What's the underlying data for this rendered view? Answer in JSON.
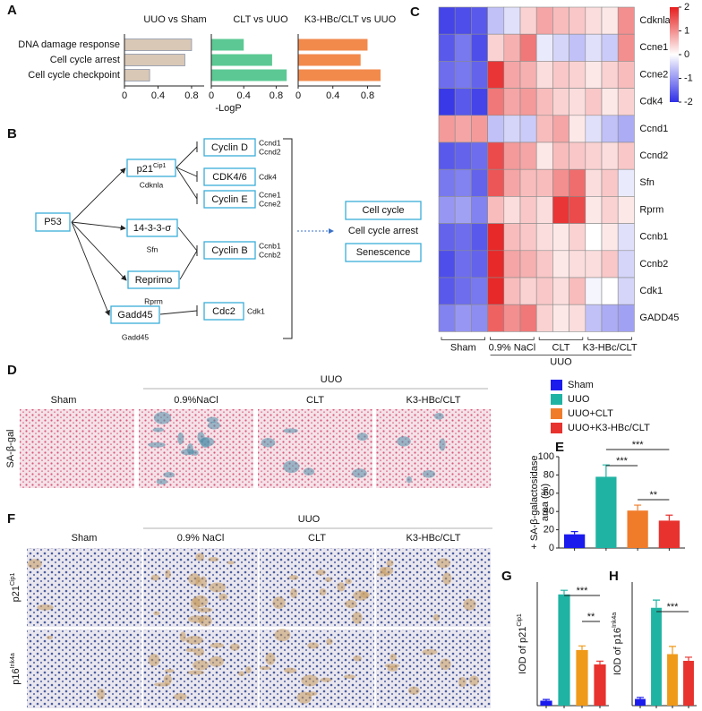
{
  "panel_letters": [
    "A",
    "B",
    "C",
    "D",
    "E",
    "F",
    "G",
    "H"
  ],
  "chart_data": [
    {
      "type": "hbar",
      "title": "UUO vs Sham",
      "categories": [
        "DNA damage response",
        "Cell cycle arrest",
        "Cell cycle checkpoint"
      ],
      "values": [
        0.8,
        0.72,
        0.3
      ],
      "color": "#d9c8b6",
      "xlim": [
        0,
        0.95
      ],
      "xticks": [
        0,
        0.4,
        0.8
      ]
    },
    {
      "type": "hbar",
      "title": "CLT vs UUO",
      "values": [
        0.4,
        0.75,
        0.93
      ],
      "color": "#5cc994",
      "xlim": [
        0,
        0.95
      ],
      "xticks": [
        0,
        0.4,
        0.8
      ],
      "xlabel": "-LogP"
    },
    {
      "type": "hbar",
      "title": "K3-HBc/CLT vs UUO",
      "values": [
        0.8,
        0.72,
        0.95
      ],
      "color": "#f28a4c",
      "xlim": [
        0,
        0.95
      ],
      "xticks": [
        0,
        0.4,
        0.8
      ]
    },
    {
      "type": "heatmap",
      "rows": [
        "Cdknla",
        "Ccne1",
        "Ccne2",
        "Cdk4",
        "Ccnd1",
        "Ccnd2",
        "Sfn",
        "Rprm",
        "Ccnb1",
        "Ccnb2",
        "Cdk1",
        "GADD45"
      ],
      "groups": [
        "Sham",
        "0.9% NaCl",
        "CLT",
        "K3-HBc/CLT"
      ],
      "supergroup": "UUO",
      "values": [
        [
          -1.8,
          -1.7,
          -1.6,
          -0.6,
          -0.3,
          0.4,
          0.8,
          0.6,
          0.5,
          0.3,
          0.2,
          1.0
        ],
        [
          -1.6,
          -1.3,
          -1.7,
          0.4,
          0.7,
          1.2,
          -0.2,
          -0.4,
          -0.6,
          -0.3,
          -0.5,
          1.0
        ],
        [
          -1.4,
          -1.3,
          -1.5,
          1.8,
          0.8,
          0.7,
          0.3,
          0.5,
          0.4,
          0.2,
          0.4,
          0.6
        ],
        [
          -1.9,
          -1.6,
          -1.8,
          1.2,
          0.8,
          0.9,
          0.6,
          0.4,
          0.3,
          0.5,
          0.2,
          0.4
        ],
        [
          0.9,
          0.8,
          0.9,
          -0.6,
          -0.4,
          -0.5,
          0.6,
          0.8,
          0.2,
          -0.3,
          -0.6,
          -0.8
        ],
        [
          -1.6,
          -1.5,
          -1.4,
          1.6,
          0.9,
          0.8,
          0.2,
          0.6,
          0.5,
          0.4,
          0.3,
          0.5
        ],
        [
          -1.3,
          -1.2,
          -1.5,
          1.5,
          0.8,
          0.6,
          0.6,
          1.0,
          1.3,
          0.3,
          0.5,
          -0.2
        ],
        [
          -1.0,
          -0.9,
          -1.2,
          0.6,
          0.3,
          0.5,
          0.3,
          1.8,
          1.6,
          0.2,
          0.4,
          0.2
        ],
        [
          -1.5,
          -1.4,
          -1.6,
          1.9,
          0.6,
          0.5,
          0.3,
          0.2,
          0.4,
          0.0,
          0.2,
          -0.3
        ],
        [
          -1.7,
          -1.4,
          -1.5,
          1.9,
          0.8,
          0.7,
          0.5,
          0.2,
          0.3,
          0.3,
          0.5,
          -0.4
        ],
        [
          -1.6,
          -1.4,
          -1.3,
          1.9,
          0.6,
          0.4,
          0.5,
          0.3,
          0.6,
          -0.1,
          0.0,
          -0.4
        ],
        [
          -1.2,
          -1.0,
          -1.1,
          1.4,
          1.0,
          1.2,
          0.4,
          0.2,
          0.3,
          -0.6,
          -0.8,
          -0.9
        ]
      ],
      "clim": [
        -2,
        2
      ],
      "cticks": [
        2,
        1,
        0,
        -1,
        -2
      ],
      "colors": [
        "#2f2fe6",
        "#ffffff",
        "#e61e1e"
      ]
    },
    {
      "type": "bar",
      "categories": [
        "Sham",
        "UUO",
        "UUO+CLT",
        "UUO+K3-HBc/CLT"
      ],
      "colors": [
        "#1b1bee",
        "#1fb3a3",
        "#f07c2a",
        "#e8322e"
      ],
      "values": [
        15,
        78,
        41,
        30
      ],
      "errors": [
        3,
        13,
        6,
        6
      ],
      "ylim": [
        0,
        100
      ],
      "yticks": [
        0,
        20,
        40,
        60,
        80,
        100
      ],
      "ylabel": [
        "+ SA-β-galactosidase",
        "area (%)"
      ],
      "significance": [
        "***",
        "***",
        "**"
      ]
    },
    {
      "type": "bar",
      "colors": [
        "#1b1bee",
        "#1fb3a3",
        "#f09a1a",
        "#e8322e"
      ],
      "values": [
        1.2,
        27,
        13.5,
        10
      ],
      "errors": [
        0.3,
        1,
        1,
        0.8
      ],
      "ylim": [
        0,
        30
      ],
      "ylabel": "IOD of p21",
      "ylabel_sup": "Cip1",
      "significance": [
        "***",
        "**"
      ]
    },
    {
      "type": "bar",
      "colors": [
        "#1b1bee",
        "#1fb3a3",
        "#f09a1a",
        "#e8322e"
      ],
      "values": [
        1.3,
        19,
        10,
        8.7
      ],
      "errors": [
        0.3,
        1.5,
        1.5,
        0.7
      ],
      "ylim": [
        0,
        24
      ],
      "ylabel": "IOD of p16",
      "ylabel_sup": "Ink4a",
      "significance": [
        "***"
      ]
    }
  ],
  "pathway": {
    "p53": "P53",
    "regulators": [
      {
        "name": "p21",
        "sup": "Cip1",
        "gene": "Cdknla"
      },
      {
        "name": "14-3-3-σ",
        "gene": "Sfn"
      },
      {
        "name": "Reprimo",
        "gene": "Rprm"
      },
      {
        "name": "Gadd45",
        "gene": "Gadd45"
      }
    ],
    "targets": [
      {
        "name": "Cyclin D",
        "genes": [
          "Ccnd1",
          "Ccnd2"
        ]
      },
      {
        "name": "CDK4/6",
        "genes": [
          "Cdk4"
        ]
      },
      {
        "name": "Cyclin E",
        "genes": [
          "Ccne1",
          "Ccne2"
        ]
      },
      {
        "name": "Cyclin B",
        "genes": [
          "Ccnb1",
          "Ccnb2"
        ]
      },
      {
        "name": "Cdc2",
        "genes": [
          "Cdk1"
        ]
      }
    ],
    "outcomes": [
      "Cell cycle",
      "Cell cycle arrest",
      "Senescence"
    ]
  },
  "staining_d": {
    "groups": [
      "Sham",
      "0.9%NaCl",
      "CLT",
      "K3-HBc/CLT"
    ],
    "supergroup": "UUO",
    "row_label": "SA-β-gal"
  },
  "staining_f": {
    "groups": [
      "Sham",
      "0.9% NaCl",
      "CLT",
      "K3-HBc/CLT"
    ],
    "supergroup": "UUO",
    "rows": [
      {
        "name": "p21",
        "sup": "Cip1"
      },
      {
        "name": "p16",
        "sup": "Ink4a"
      }
    ]
  }
}
